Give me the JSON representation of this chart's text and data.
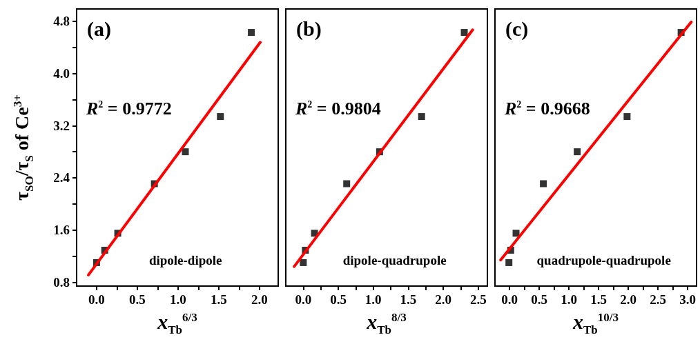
{
  "chart_data": [
    {
      "type": "scatter",
      "title": "(a)",
      "xlabel": "x$_{Tb}$$^{6/3}$",
      "ylabel": "τ$_{SO}$/τ$_{S}$ of Ce$^{3+}$",
      "annotations": [
        "R$^{2}$ = 0.9772",
        "dipole-dipole"
      ],
      "marker": "square",
      "xlim": [
        -0.245,
        2.23
      ],
      "xticks": [
        {
          "value": 0,
          "label": "0.0"
        },
        {
          "value": 0.25,
          "label": null
        },
        {
          "value": 0.5,
          "label": "0.5"
        },
        {
          "value": 0.75,
          "label": null
        },
        {
          "value": 1,
          "label": "1.0"
        },
        {
          "value": 1.25,
          "label": null
        },
        {
          "value": 1.5,
          "label": "1.5"
        },
        {
          "value": 1.75,
          "label": null
        },
        {
          "value": 2,
          "label": "2.0"
        }
      ],
      "ylim": [
        0.74,
        4.99
      ],
      "yticks": [
        {
          "value": 0.8,
          "label": "0.8"
        },
        {
          "value": 1.2,
          "label": null
        },
        {
          "value": 1.6,
          "label": "1.6"
        },
        {
          "value": 2,
          "label": null
        },
        {
          "value": 2.4,
          "label": "2.4"
        },
        {
          "value": 2.8,
          "label": null
        },
        {
          "value": 3.2,
          "label": "3.2"
        },
        {
          "value": 3.6,
          "label": null
        },
        {
          "value": 4,
          "label": "4.0"
        },
        {
          "value": 4.4,
          "label": null
        },
        {
          "value": 4.8,
          "label": "4.8"
        }
      ],
      "series": [
        {
          "color": "#000000",
          "x": [
            0,
            0.1,
            0.26,
            0.71,
            1.09,
            1.52,
            1.9
          ],
          "values": [
            1.1,
            1.29,
            1.55,
            2.31,
            2.8,
            3.34,
            4.63
          ]
        },
        {
          "type": "line",
          "marker": "none",
          "color": "#ff0000",
          "x": [
            -0.1,
            2.01
          ],
          "values": [
            0.91,
            4.48
          ]
        }
      ]
    },
    {
      "type": "scatter",
      "title": "(b)",
      "xlabel": "x$_{Tb}$$^{8/3}$",
      "annotations": [
        "R$^{2}$ = 0.9804",
        "dipole-quadrupole"
      ],
      "marker": "square",
      "tick_labels": "x",
      "xlim": [
        -0.25,
        2.63
      ],
      "xticks": [
        {
          "value": 0,
          "label": "0.0"
        },
        {
          "value": 0.25,
          "label": null
        },
        {
          "value": 0.5,
          "label": "0.5"
        },
        {
          "value": 0.75,
          "label": null
        },
        {
          "value": 1,
          "label": "1.0"
        },
        {
          "value": 1.25,
          "label": null
        },
        {
          "value": 1.5,
          "label": "1.5"
        },
        {
          "value": 1.75,
          "label": null
        },
        {
          "value": 2,
          "label": "2.0"
        },
        {
          "value": 2.25,
          "label": null
        },
        {
          "value": 2.5,
          "label": "2.5"
        }
      ],
      "ylim": [
        0.74,
        4.99
      ],
      "series": [
        {
          "color": "#000000",
          "x": [
            0,
            0.03,
            0.16,
            0.62,
            1.09,
            1.69,
            2.3
          ],
          "values": [
            1.1,
            1.29,
            1.55,
            2.31,
            2.8,
            3.34,
            4.63
          ]
        },
        {
          "type": "line",
          "marker": "none",
          "color": "#ff0000",
          "x": [
            -0.13,
            2.42
          ],
          "values": [
            1.04,
            4.67
          ]
        }
      ]
    },
    {
      "type": "scatter",
      "title": "(c)",
      "xlabel": "x$_{Tb}$$^{10/3}$",
      "annotations": [
        "R$^{2}$ = 0.9668",
        "quadrupole-quadrupole"
      ],
      "marker": "square",
      "tick_labels": "x",
      "xlim": [
        -0.245,
        3.15
      ],
      "xticks": [
        {
          "value": 0,
          "label": "0.0"
        },
        {
          "value": 0.25,
          "label": null
        },
        {
          "value": 0.5,
          "label": "0.5"
        },
        {
          "value": 0.75,
          "label": null
        },
        {
          "value": 1,
          "label": "1.0"
        },
        {
          "value": 1.25,
          "label": null
        },
        {
          "value": 1.5,
          "label": "1.5"
        },
        {
          "value": 1.75,
          "label": null
        },
        {
          "value": 2,
          "label": "2.0"
        },
        {
          "value": 2.25,
          "label": null
        },
        {
          "value": 2.5,
          "label": "2.5"
        },
        {
          "value": 2.75,
          "label": null
        },
        {
          "value": 3,
          "label": "3.0"
        }
      ],
      "ylim": [
        0.74,
        4.99
      ],
      "series": [
        {
          "color": "#000000",
          "x": [
            -0.01,
            0.02,
            0.11,
            0.57,
            1.14,
            1.98,
            2.89
          ],
          "values": [
            1.1,
            1.29,
            1.55,
            2.31,
            2.8,
            3.34,
            4.63
          ]
        },
        {
          "type": "line",
          "marker": "none",
          "color": "#ff0000",
          "x": [
            -0.15,
            3.06
          ],
          "values": [
            1.14,
            4.79
          ]
        }
      ]
    }
  ]
}
